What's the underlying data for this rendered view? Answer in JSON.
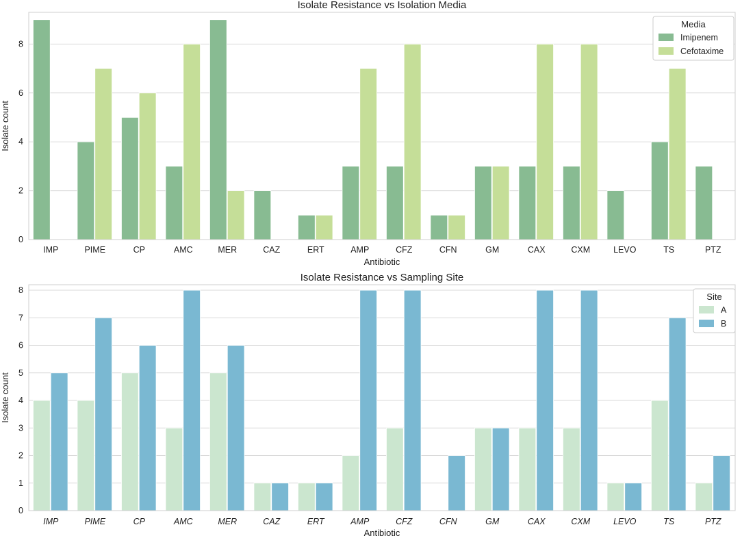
{
  "chart_data": [
    {
      "type": "bar",
      "title": "Isolate Resistance vs Isolation Media",
      "xlabel": "Antibiotic",
      "ylabel": "Isolate count",
      "categories": [
        "IMP",
        "PIME",
        "CP",
        "AMC",
        "MER",
        "CAZ",
        "ERT",
        "AMP",
        "CFZ",
        "CFN",
        "GM",
        "CAX",
        "CXM",
        "LEVO",
        "TS",
        "PTZ"
      ],
      "italic_ticks": false,
      "ylim": [
        0,
        9.3
      ],
      "yticks": [
        0,
        2,
        4,
        6,
        8
      ],
      "legend": {
        "title": "Media",
        "position": "top-right"
      },
      "series": [
        {
          "name": "Imipenem",
          "color": "#88bb92",
          "values": [
            9,
            4,
            5,
            3,
            9,
            2,
            1,
            3,
            3,
            1,
            3,
            3,
            3,
            2,
            4,
            3
          ]
        },
        {
          "name": "Cefotaxime",
          "color": "#c5de98",
          "values": [
            0,
            7,
            6,
            8,
            2,
            0,
            1,
            7,
            8,
            1,
            3,
            8,
            8,
            0,
            7,
            0
          ]
        }
      ]
    },
    {
      "type": "bar",
      "title": "Isolate Resistance vs Sampling Site",
      "xlabel": "Antibiotic",
      "ylabel": "Isolate count",
      "categories": [
        "IMP",
        "PIME",
        "CP",
        "AMC",
        "MER",
        "CAZ",
        "ERT",
        "AMP",
        "CFZ",
        "CFN",
        "GM",
        "CAX",
        "CXM",
        "LEVO",
        "TS",
        "PTZ"
      ],
      "italic_ticks": true,
      "ylim": [
        0,
        8.2
      ],
      "yticks": [
        0,
        1,
        2,
        3,
        4,
        5,
        6,
        7,
        8
      ],
      "legend": {
        "title": "Site",
        "position": "top-right"
      },
      "series": [
        {
          "name": "A",
          "color": "#cbe6cf",
          "values": [
            4,
            4,
            5,
            3,
            5,
            1,
            1,
            2,
            3,
            0,
            3,
            3,
            3,
            1,
            4,
            1
          ]
        },
        {
          "name": "B",
          "color": "#7ab8d2",
          "values": [
            5,
            7,
            6,
            8,
            6,
            1,
            1,
            8,
            8,
            2,
            3,
            8,
            8,
            1,
            7,
            2
          ]
        }
      ]
    }
  ]
}
